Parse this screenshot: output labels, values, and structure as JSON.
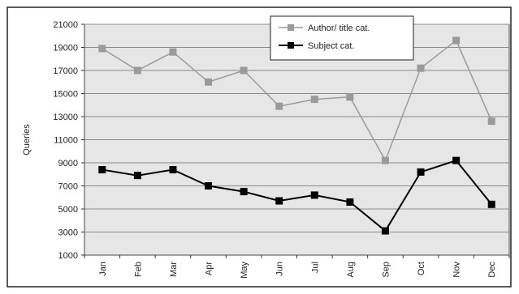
{
  "chart_data": {
    "type": "line",
    "title": "",
    "xlabel": "",
    "ylabel": "Queries",
    "categories": [
      "Jan",
      "Feb",
      "Mar",
      "Apr",
      "May",
      "Jun",
      "Jul",
      "Aug",
      "Sep",
      "Oct",
      "Nov",
      "Dec"
    ],
    "ylim": [
      1000,
      21000
    ],
    "yticks": [
      1000,
      3000,
      5000,
      7000,
      9000,
      11000,
      13000,
      15000,
      17000,
      19000,
      21000
    ],
    "grid": true,
    "legend_position": "top-right",
    "series": [
      {
        "name": "Author/ title cat.",
        "color": "#9a9a9a",
        "marker": "square",
        "values": [
          18900,
          17000,
          18600,
          16000,
          17000,
          13900,
          14500,
          14700,
          9200,
          17200,
          19600,
          12600
        ]
      },
      {
        "name": "Subject cat.",
        "color": "#000000",
        "marker": "square",
        "values": [
          8400,
          7900,
          8400,
          7000,
          6500,
          5700,
          6200,
          5600,
          3100,
          8200,
          9200,
          5400
        ]
      }
    ]
  },
  "colors": {
    "plot_background": "#e6e6e6",
    "gridline": "#8a8a8a",
    "frame": "#222222"
  }
}
